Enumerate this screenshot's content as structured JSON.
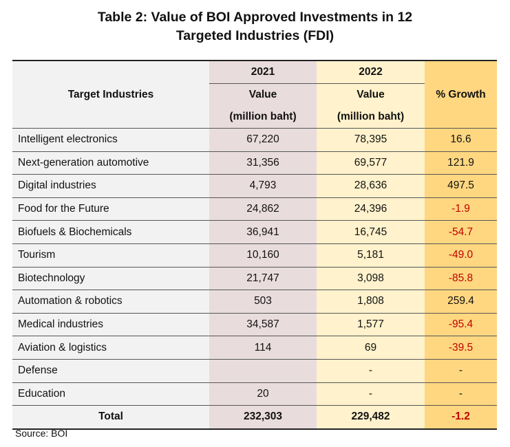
{
  "title": {
    "line1": "Table 2: Value of BOI Approved Investments in 12",
    "line2": "Targeted Industries (FDI)"
  },
  "header": {
    "industries": "Target Industries",
    "year_2021": "2021",
    "year_2022": "2022",
    "value": "Value",
    "unit": "(million baht)",
    "growth": "% Growth"
  },
  "rows": [
    {
      "industry": "Intelligent electronics",
      "v2021": "67,220",
      "v2022": "78,395",
      "growth": "16.6"
    },
    {
      "industry": "Next-generation automotive",
      "v2021": "31,356",
      "v2022": "69,577",
      "growth": "121.9"
    },
    {
      "industry": "Digital industries",
      "v2021": "4,793",
      "v2022": "28,636",
      "growth": "497.5"
    },
    {
      "industry": "Food for the Future",
      "v2021": "24,862",
      "v2022": "24,396",
      "growth": "-1.9"
    },
    {
      "industry": "Biofuels & Biochemicals",
      "v2021": "36,941",
      "v2022": "16,745",
      "growth": "-54.7"
    },
    {
      "industry": "Tourism",
      "v2021": "10,160",
      "v2022": "5,181",
      "growth": "-49.0"
    },
    {
      "industry": "Biotechnology",
      "v2021": "21,747",
      "v2022": "3,098",
      "growth": "-85.8"
    },
    {
      "industry": "Automation & robotics",
      "v2021": "503",
      "v2022": "1,808",
      "growth": "259.4"
    },
    {
      "industry": "Medical industries",
      "v2021": "34,587",
      "v2022": "1,577",
      "growth": "-95.4"
    },
    {
      "industry": "Aviation & logistics",
      "v2021": "114",
      "v2022": "69",
      "growth": "-39.5"
    },
    {
      "industry": "Defense",
      "v2021": "",
      "v2022": "-",
      "growth": "-"
    },
    {
      "industry": "Education",
      "v2021": "20",
      "v2022": "-",
      "growth": "-"
    }
  ],
  "total": {
    "label": "Total",
    "v2021": "232,303",
    "v2022": "229,482",
    "growth": "-1.2"
  },
  "source": "Source: BOI",
  "colors": {
    "industry_bg": "#f2f2f2",
    "col2021_bg": "#e9dcdd",
    "col2022_bg": "#fff2cc",
    "growth_bg": "#ffd780",
    "negative": "#c00000"
  }
}
